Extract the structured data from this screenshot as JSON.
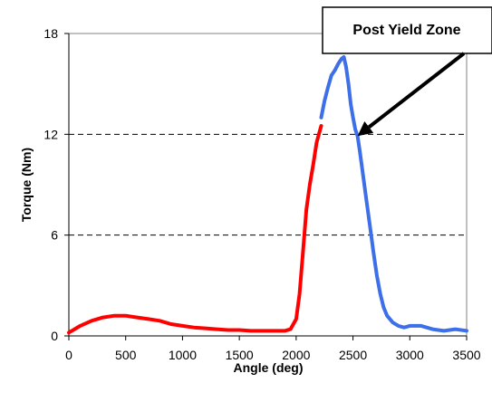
{
  "chart_data": {
    "type": "line",
    "title": "",
    "xlabel": "Angle (deg)",
    "ylabel": "Torque (Nm)",
    "xlim": [
      0,
      3500
    ],
    "ylim": [
      0,
      18
    ],
    "xticks": [
      "0",
      "500",
      "1000",
      "1500",
      "2000",
      "2500",
      "3000",
      "3500"
    ],
    "yticks": [
      "0",
      "6",
      "12",
      "18"
    ],
    "grid": "dashed horizontal at 6 and 12",
    "annotation": {
      "text": "Post Yield Zone",
      "points_to": [
        2540,
        11.9
      ]
    },
    "series": [
      {
        "color": "#ff0000",
        "x": [
          0,
          50,
          100,
          200,
          300,
          400,
          500,
          600,
          700,
          800,
          900,
          1000,
          1100,
          1200,
          1300,
          1400,
          1500,
          1600,
          1700,
          1800,
          1900,
          1950,
          2000,
          2030,
          2060,
          2090,
          2120,
          2150,
          2180,
          2200,
          2220
        ],
        "y": [
          0.2,
          0.4,
          0.6,
          0.9,
          1.1,
          1.2,
          1.2,
          1.1,
          1.0,
          0.9,
          0.7,
          0.6,
          0.5,
          0.45,
          0.4,
          0.35,
          0.35,
          0.3,
          0.3,
          0.3,
          0.3,
          0.4,
          1.0,
          2.5,
          5.0,
          7.5,
          9.0,
          10.2,
          11.5,
          12.0,
          12.5
        ]
      },
      {
        "color": "#3d6fe8",
        "x": [
          2220,
          2250,
          2280,
          2310,
          2340,
          2370,
          2400,
          2420,
          2440,
          2460,
          2480,
          2500,
          2520,
          2540,
          2560,
          2580,
          2600,
          2620,
          2650,
          2680,
          2710,
          2740,
          2770,
          2800,
          2850,
          2900,
          2950,
          3000,
          3100,
          3200,
          3300,
          3400,
          3500
        ],
        "y": [
          13.0,
          14.0,
          14.8,
          15.5,
          15.8,
          16.2,
          16.5,
          16.6,
          16.0,
          15.0,
          13.8,
          13.0,
          12.3,
          11.9,
          11.0,
          10.0,
          9.0,
          8.0,
          6.5,
          5.0,
          3.6,
          2.5,
          1.7,
          1.2,
          0.8,
          0.6,
          0.5,
          0.6,
          0.6,
          0.4,
          0.3,
          0.4,
          0.3
        ]
      }
    ]
  }
}
